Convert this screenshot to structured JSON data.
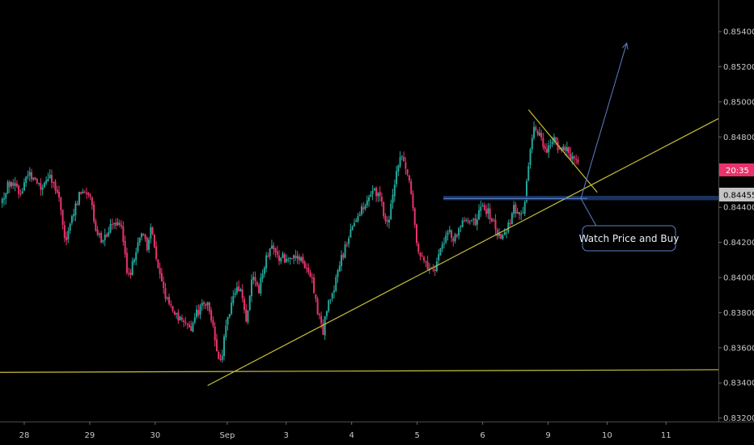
{
  "chart_data": {
    "type": "candlestick",
    "x_axis": {
      "ticks": [
        {
          "label": "28",
          "t": 0.5
        },
        {
          "label": "29",
          "t": 10.5
        },
        {
          "label": "30",
          "t": 20.5
        },
        {
          "label": "Sep",
          "t": 31.5
        },
        {
          "label": "3",
          "t": 40.5
        },
        {
          "label": "4",
          "t": 50.5
        },
        {
          "label": "5",
          "t": 60.5
        },
        {
          "label": "6",
          "t": 70.5
        },
        {
          "label": "9",
          "t": 80.5
        },
        {
          "label": "10",
          "t": 89.5
        },
        {
          "label": "11",
          "t": 98.5
        }
      ],
      "range": [
        -3.2,
        106.5
      ]
    },
    "y_axis": {
      "ticks": [
        "0.85400",
        "0.85200",
        "0.85000",
        "0.84800",
        "0.84600",
        "0.84400",
        "0.84200",
        "0.84000",
        "0.83800",
        "0.83600",
        "0.83400",
        "0.83200"
      ],
      "range": [
        0.8318,
        0.8558
      ]
    },
    "price_path": [
      [
        -3,
        0.8442
      ],
      [
        -1.5,
        0.8455
      ],
      [
        0,
        0.8448
      ],
      [
        1.5,
        0.846
      ],
      [
        3,
        0.8452
      ],
      [
        4.5,
        0.8458
      ],
      [
        6,
        0.8445
      ],
      [
        7,
        0.842
      ],
      [
        8,
        0.8435
      ],
      [
        9.5,
        0.8452
      ],
      [
        10.5,
        0.8448
      ],
      [
        11.5,
        0.843
      ],
      [
        12.5,
        0.842
      ],
      [
        14,
        0.8432
      ],
      [
        15.5,
        0.8428
      ],
      [
        16.5,
        0.84
      ],
      [
        17.5,
        0.841
      ],
      [
        18.5,
        0.8428
      ],
      [
        19.5,
        0.8415
      ],
      [
        20,
        0.843
      ],
      [
        21,
        0.8405
      ],
      [
        22,
        0.8392
      ],
      [
        23.5,
        0.838
      ],
      [
        25,
        0.8375
      ],
      [
        26,
        0.8368
      ],
      [
        27,
        0.838
      ],
      [
        28.5,
        0.8386
      ],
      [
        29.5,
        0.8372
      ],
      [
        30.5,
        0.835
      ],
      [
        31.5,
        0.8372
      ],
      [
        32.5,
        0.8388
      ],
      [
        33.5,
        0.8395
      ],
      [
        34.5,
        0.8375
      ],
      [
        35.5,
        0.84
      ],
      [
        36.5,
        0.8393
      ],
      [
        37.5,
        0.841
      ],
      [
        38.5,
        0.842
      ],
      [
        39.5,
        0.8412
      ],
      [
        41,
        0.841
      ],
      [
        43,
        0.841
      ],
      [
        44.5,
        0.8402
      ],
      [
        45.5,
        0.838
      ],
      [
        46.2,
        0.8368
      ],
      [
        47,
        0.8385
      ],
      [
        48,
        0.8395
      ],
      [
        49,
        0.841
      ],
      [
        50,
        0.842
      ],
      [
        51,
        0.8432
      ],
      [
        52.5,
        0.844
      ],
      [
        54,
        0.845
      ],
      [
        55,
        0.8445
      ],
      [
        56,
        0.8428
      ],
      [
        57,
        0.8448
      ],
      [
        58,
        0.847
      ],
      [
        59,
        0.8462
      ],
      [
        59.8,
        0.8445
      ],
      [
        60.5,
        0.842
      ],
      [
        61.5,
        0.841
      ],
      [
        62.5,
        0.8405
      ],
      [
        63.5,
        0.8405
      ],
      [
        64.5,
        0.842
      ],
      [
        65.5,
        0.8425
      ],
      [
        66.5,
        0.8422
      ],
      [
        67.5,
        0.843
      ],
      [
        68.5,
        0.8435
      ],
      [
        69.5,
        0.843
      ],
      [
        70.5,
        0.844
      ],
      [
        71.5,
        0.8438
      ],
      [
        72.5,
        0.8428
      ],
      [
        73.5,
        0.8422
      ],
      [
        74.5,
        0.843
      ],
      [
        75.5,
        0.844
      ],
      [
        76.5,
        0.8435
      ],
      [
        77,
        0.844
      ],
      [
        77.8,
        0.8468
      ],
      [
        78.5,
        0.8488
      ],
      [
        79.5,
        0.848
      ],
      [
        80.5,
        0.8472
      ],
      [
        81.5,
        0.8482
      ],
      [
        82.5,
        0.847
      ],
      [
        83.5,
        0.8475
      ],
      [
        84.2,
        0.8468
      ],
      [
        85,
        0.8465
      ]
    ],
    "last_price": "0.84455",
    "countdown": "20:35",
    "drawings": {
      "horizontal_line": {
        "t": [
          -3.2,
          106.5
        ],
        "y": [
          0.8346,
          0.83475
        ],
        "color": "#c7c13a"
      },
      "rising_trendline": {
        "t": [
          28.5,
          106.5
        ],
        "y": [
          0.83385,
          0.84905
        ],
        "color": "#c7c13a"
      },
      "falling_trendline": {
        "t": [
          77.5,
          88
        ],
        "y": [
          0.84955,
          0.84485
        ],
        "color": "#c7c13a"
      },
      "support_zone": {
        "t": [
          64.5,
          106.5
        ],
        "y": [
          0.84465,
          0.8444
        ],
        "color": "#1f3b6e"
      },
      "support_line": {
        "t": [
          64.5,
          86.5
        ],
        "y": [
          0.8445,
          0.8445
        ],
        "color": "#5d7fc4"
      },
      "arrow_up": {
        "t": [
          85.5,
          92.5
        ],
        "y": [
          0.8445,
          0.85335
        ],
        "color": "#5d7fc4"
      },
      "arrow_down": {
        "t": [
          85.5,
          88.5
        ],
        "y": [
          0.8445,
          0.8425
        ],
        "color": "#5d7fc4"
      }
    },
    "annotation": {
      "text": "Watch Price and Buy",
      "t_center": 94.5,
      "y_center": 0.84225
    },
    "colors": {
      "up": "#25a69a",
      "down": "#e8346b",
      "axis_text": "#c8c8c8",
      "last_price_bg": "#c4c4c4",
      "countdown_bg": "#e8346b"
    }
  }
}
